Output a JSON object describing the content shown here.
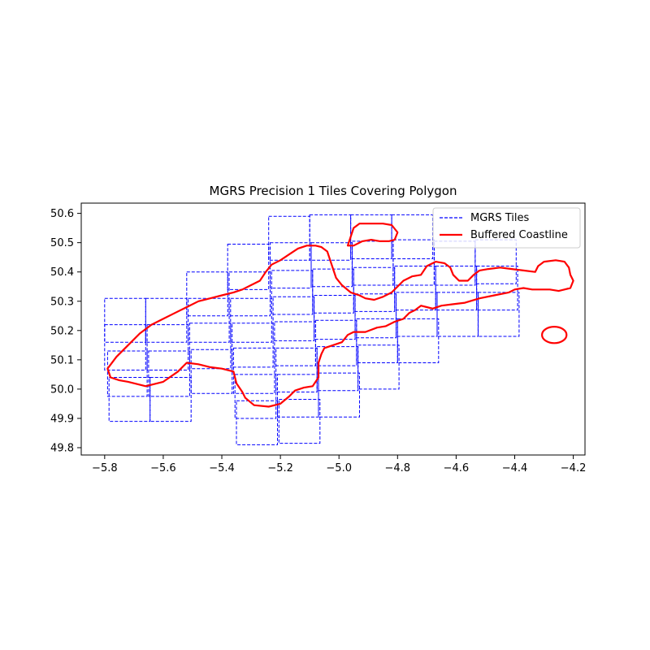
{
  "chart_data": {
    "type": "line",
    "title": "MGRS Precision 1 Tiles Covering Polygon",
    "xlabel": "",
    "ylabel": "",
    "xlim": [
      -5.88,
      -4.16
    ],
    "ylim": [
      49.775,
      50.635
    ],
    "x_ticks": [
      -5.8,
      -5.6,
      -5.4,
      -5.2,
      -5.0,
      -4.8,
      -4.6,
      -4.4,
      -4.2
    ],
    "y_ticks": [
      49.8,
      49.9,
      50.0,
      50.1,
      50.2,
      50.3,
      50.4,
      50.5,
      50.6
    ],
    "grid": false,
    "legend_position": "top-right",
    "colors": {
      "tiles": "#0000ff",
      "coastline": "#ff0000"
    },
    "series": [
      {
        "name": "MGRS Tiles",
        "style": "dashed",
        "color": "#0000ff",
        "tiles": [
          [
            -5.8,
            50.16,
            -5.66,
            50.31
          ],
          [
            -5.8,
            50.065,
            -5.66,
            50.22
          ],
          [
            -5.79,
            49.975,
            -5.655,
            50.13
          ],
          [
            -5.785,
            49.89,
            -5.645,
            50.04
          ],
          [
            -5.66,
            50.16,
            -5.52,
            50.31
          ],
          [
            -5.655,
            50.065,
            -5.515,
            50.22
          ],
          [
            -5.65,
            49.975,
            -5.51,
            50.13
          ],
          [
            -5.645,
            49.89,
            -5.505,
            50.04
          ],
          [
            -5.52,
            50.25,
            -5.38,
            50.4
          ],
          [
            -5.515,
            50.16,
            -5.375,
            50.31
          ],
          [
            -5.51,
            50.07,
            -5.37,
            50.225
          ],
          [
            -5.505,
            49.985,
            -5.365,
            50.135
          ],
          [
            -5.38,
            50.34,
            -5.24,
            50.495
          ],
          [
            -5.375,
            50.25,
            -5.235,
            50.4
          ],
          [
            -5.37,
            50.16,
            -5.23,
            50.31
          ],
          [
            -5.365,
            50.075,
            -5.225,
            50.225
          ],
          [
            -5.36,
            49.985,
            -5.22,
            50.14
          ],
          [
            -5.355,
            49.9,
            -5.215,
            50.05
          ],
          [
            -5.35,
            49.81,
            -5.21,
            49.96
          ],
          [
            -5.24,
            50.44,
            -5.1,
            50.59
          ],
          [
            -5.235,
            50.345,
            -5.095,
            50.5
          ],
          [
            -5.23,
            50.255,
            -5.09,
            50.405
          ],
          [
            -5.225,
            50.165,
            -5.085,
            50.315
          ],
          [
            -5.22,
            50.08,
            -5.08,
            50.23
          ],
          [
            -5.215,
            49.99,
            -5.075,
            50.14
          ],
          [
            -5.21,
            49.905,
            -5.07,
            50.05
          ],
          [
            -5.205,
            49.815,
            -5.065,
            49.965
          ],
          [
            -5.1,
            50.44,
            -4.96,
            50.595
          ],
          [
            -5.095,
            50.35,
            -4.955,
            50.5
          ],
          [
            -5.09,
            50.26,
            -4.95,
            50.41
          ],
          [
            -5.085,
            50.17,
            -4.945,
            50.32
          ],
          [
            -5.08,
            50.08,
            -4.94,
            50.235
          ],
          [
            -5.075,
            49.995,
            -4.935,
            50.145
          ],
          [
            -5.07,
            49.905,
            -4.93,
            50.055
          ],
          [
            -4.96,
            50.445,
            -4.82,
            50.595
          ],
          [
            -4.955,
            50.355,
            -4.815,
            50.505
          ],
          [
            -4.95,
            50.265,
            -4.81,
            50.415
          ],
          [
            -4.945,
            50.175,
            -4.805,
            50.325
          ],
          [
            -4.94,
            50.09,
            -4.8,
            50.24
          ],
          [
            -4.935,
            50.0,
            -4.795,
            50.15
          ],
          [
            -4.82,
            50.445,
            -4.68,
            50.595
          ],
          [
            -4.815,
            50.355,
            -4.675,
            50.51
          ],
          [
            -4.81,
            50.27,
            -4.67,
            50.42
          ],
          [
            -4.805,
            50.18,
            -4.665,
            50.33
          ],
          [
            -4.8,
            50.09,
            -4.66,
            50.24
          ],
          [
            -4.675,
            50.355,
            -4.535,
            50.505
          ],
          [
            -4.67,
            50.27,
            -4.53,
            50.42
          ],
          [
            -4.665,
            50.18,
            -4.525,
            50.33
          ],
          [
            -4.535,
            50.36,
            -4.395,
            50.51
          ],
          [
            -4.53,
            50.27,
            -4.39,
            50.42
          ],
          [
            -4.525,
            50.18,
            -4.385,
            50.33
          ]
        ]
      },
      {
        "name": "Buffered Coastline",
        "style": "solid",
        "color": "#ff0000",
        "shapes": [
          {
            "kind": "polygon",
            "points": [
              [
                -5.72,
                50.025
              ],
              [
                -5.66,
                50.01
              ],
              [
                -5.6,
                50.025
              ],
              [
                -5.55,
                50.06
              ],
              [
                -5.52,
                50.09
              ],
              [
                -5.48,
                50.085
              ],
              [
                -5.44,
                50.075
              ],
              [
                -5.4,
                50.07
              ],
              [
                -5.36,
                50.06
              ],
              [
                -5.35,
                50.02
              ],
              [
                -5.33,
                49.99
              ],
              [
                -5.32,
                49.97
              ],
              [
                -5.29,
                49.945
              ],
              [
                -5.24,
                49.94
              ],
              [
                -5.2,
                49.95
              ],
              [
                -5.17,
                49.975
              ],
              [
                -5.15,
                49.995
              ],
              [
                -5.12,
                50.005
              ],
              [
                -5.09,
                50.01
              ],
              [
                -5.07,
                50.04
              ],
              [
                -5.07,
                50.09
              ],
              [
                -5.06,
                50.12
              ],
              [
                -5.05,
                50.14
              ],
              [
                -5.02,
                50.15
              ],
              [
                -4.99,
                50.16
              ],
              [
                -4.97,
                50.185
              ],
              [
                -4.95,
                50.195
              ],
              [
                -4.91,
                50.195
              ],
              [
                -4.87,
                50.21
              ],
              [
                -4.84,
                50.215
              ],
              [
                -4.81,
                50.23
              ],
              [
                -4.78,
                50.24
              ],
              [
                -4.76,
                50.26
              ],
              [
                -4.74,
                50.27
              ],
              [
                -4.72,
                50.285
              ],
              [
                -4.7,
                50.28
              ],
              [
                -4.68,
                50.275
              ],
              [
                -4.65,
                50.285
              ],
              [
                -4.61,
                50.29
              ],
              [
                -4.57,
                50.295
              ],
              [
                -4.52,
                50.31
              ],
              [
                -4.47,
                50.32
              ],
              [
                -4.42,
                50.33
              ],
              [
                -4.4,
                50.34
              ],
              [
                -4.37,
                50.345
              ],
              [
                -4.34,
                50.34
              ],
              [
                -4.31,
                50.34
              ],
              [
                -4.28,
                50.34
              ],
              [
                -4.25,
                50.335
              ],
              [
                -4.23,
                50.34
              ],
              [
                -4.21,
                50.345
              ],
              [
                -4.2,
                50.37
              ],
              [
                -4.21,
                50.39
              ],
              [
                -4.215,
                50.415
              ],
              [
                -4.23,
                50.435
              ],
              [
                -4.26,
                50.44
              ],
              [
                -4.3,
                50.435
              ],
              [
                -4.32,
                50.42
              ],
              [
                -4.33,
                50.4
              ],
              [
                -4.37,
                50.405
              ],
              [
                -4.41,
                50.41
              ],
              [
                -4.45,
                50.415
              ],
              [
                -4.49,
                50.41
              ],
              [
                -4.52,
                50.405
              ],
              [
                -4.54,
                50.39
              ],
              [
                -4.56,
                50.37
              ],
              [
                -4.59,
                50.37
              ],
              [
                -4.61,
                50.39
              ],
              [
                -4.62,
                50.415
              ],
              [
                -4.64,
                50.43
              ],
              [
                -4.67,
                50.435
              ],
              [
                -4.7,
                50.42
              ],
              [
                -4.72,
                50.39
              ],
              [
                -4.75,
                50.385
              ],
              [
                -4.78,
                50.37
              ],
              [
                -4.8,
                50.35
              ],
              [
                -4.82,
                50.33
              ],
              [
                -4.85,
                50.315
              ],
              [
                -4.88,
                50.305
              ],
              [
                -4.91,
                50.31
              ],
              [
                -4.93,
                50.32
              ],
              [
                -4.96,
                50.33
              ],
              [
                -4.99,
                50.355
              ],
              [
                -5.01,
                50.38
              ],
              [
                -5.02,
                50.41
              ],
              [
                -5.03,
                50.44
              ],
              [
                -5.04,
                50.47
              ],
              [
                -5.06,
                50.485
              ],
              [
                -5.08,
                50.49
              ],
              [
                -5.11,
                50.49
              ],
              [
                -5.14,
                50.48
              ],
              [
                -5.17,
                50.46
              ],
              [
                -5.2,
                50.44
              ],
              [
                -5.23,
                50.425
              ],
              [
                -5.25,
                50.4
              ],
              [
                -5.27,
                50.37
              ],
              [
                -5.3,
                50.355
              ],
              [
                -5.33,
                50.34
              ],
              [
                -5.36,
                50.33
              ],
              [
                -5.4,
                50.32
              ],
              [
                -5.44,
                50.31
              ],
              [
                -5.48,
                50.3
              ],
              [
                -5.52,
                50.28
              ],
              [
                -5.56,
                50.26
              ],
              [
                -5.6,
                50.24
              ],
              [
                -5.64,
                50.22
              ],
              [
                -5.68,
                50.19
              ],
              [
                -5.72,
                50.15
              ],
              [
                -5.76,
                50.11
              ],
              [
                -5.79,
                50.07
              ],
              [
                -5.78,
                50.04
              ],
              [
                -5.75,
                50.03
              ]
            ]
          },
          {
            "kind": "polygon",
            "points": [
              [
                -4.97,
                50.49
              ],
              [
                -4.96,
                50.52
              ],
              [
                -4.95,
                50.55
              ],
              [
                -4.93,
                50.565
              ],
              [
                -4.89,
                50.565
              ],
              [
                -4.85,
                50.565
              ],
              [
                -4.82,
                50.56
              ],
              [
                -4.8,
                50.535
              ],
              [
                -4.81,
                50.51
              ],
              [
                -4.83,
                50.505
              ],
              [
                -4.86,
                50.505
              ],
              [
                -4.89,
                50.51
              ],
              [
                -4.92,
                50.505
              ],
              [
                -4.95,
                50.49
              ]
            ]
          },
          {
            "kind": "ellipse",
            "center": [
              -4.265,
              50.185
            ],
            "radius": [
              0.042,
              0.028
            ]
          }
        ]
      }
    ]
  }
}
